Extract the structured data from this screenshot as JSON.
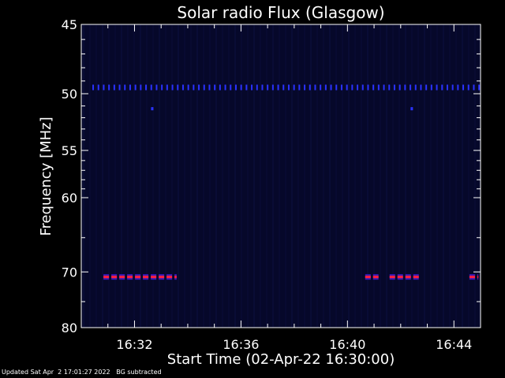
{
  "chart_data": {
    "type": "heatmap",
    "title": "Solar radio Flux (Glasgow)",
    "xlabel": "Start Time (02-Apr-22 16:30:00)",
    "ylabel": "Frequency [MHz]",
    "x_ticks": [
      "16:32",
      "16:36",
      "16:40",
      "16:44"
    ],
    "y_ticks": [
      "45",
      "50",
      "55",
      "60",
      "70",
      "80"
    ],
    "features": [
      {
        "kind": "band",
        "freq_mhz": 49.5,
        "from": "16:30:25",
        "to": "16:45:05",
        "color": "#2a32ff"
      },
      {
        "kind": "dot",
        "freq_mhz": 51.2,
        "at": "16:32:40",
        "color": "#2a32ff"
      },
      {
        "kind": "dot",
        "freq_mhz": 51.2,
        "at": "16:42:25",
        "color": "#2a32ff"
      },
      {
        "kind": "burst",
        "freq_mhz": 70.8,
        "from": "16:30:50",
        "to": "16:33:35",
        "color": "#ff1e3c"
      },
      {
        "kind": "burst",
        "freq_mhz": 70.8,
        "from": "16:40:40",
        "to": "16:41:10",
        "color": "#ff1e3c"
      },
      {
        "kind": "burst",
        "freq_mhz": 70.8,
        "from": "16:41:35",
        "to": "16:42:45",
        "color": "#ff1e3c"
      },
      {
        "kind": "burst",
        "freq_mhz": 70.8,
        "from": "16:44:35",
        "to": "16:44:55",
        "color": "#ff1e3c"
      }
    ],
    "background_color": "#06082a"
  },
  "footer": {
    "updated": "Updated Sat Apr  2 17:01:27 2022",
    "note": "BG subtracted"
  }
}
